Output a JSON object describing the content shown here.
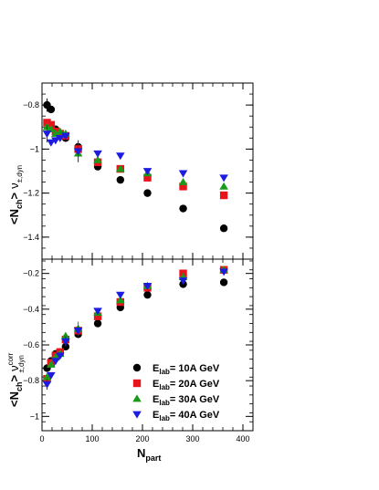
{
  "chart_data": [
    {
      "type": "scatter",
      "xlabel_main": "N",
      "xlabel_sub": "part",
      "ylabel_main": "<N",
      "ylabel_sub": "ch",
      "ylabel_close": ">",
      "ylabel_nu": "ν",
      "ylabel_nu_sub": "±,dyn",
      "xlim": [
        0,
        420
      ],
      "ylim": [
        -1.5,
        -0.7
      ],
      "yticks": [
        -0.8,
        -1.0,
        -1.2,
        -1.4
      ],
      "ytick_labels": [
        "−0.8",
        "−1",
        "−1.2",
        "−1.4"
      ],
      "series": [
        {
          "key": "10",
          "marker": "circle",
          "color": "#000000",
          "x": [
            10,
            18,
            27,
            36,
            47,
            72,
            111,
            156,
            210,
            281,
            362
          ],
          "y": [
            -0.8,
            -0.82,
            -0.91,
            -0.93,
            -0.95,
            -0.99,
            -1.08,
            -1.14,
            -1.2,
            -1.27,
            -1.36
          ],
          "err": [
            0.03,
            0,
            0,
            0,
            0,
            0,
            0,
            0,
            0,
            0,
            0
          ]
        },
        {
          "key": "20",
          "marker": "square",
          "color": "#e8141c",
          "x": [
            10,
            18,
            27,
            36,
            47,
            72,
            111,
            156,
            210,
            281,
            362
          ],
          "y": [
            -0.88,
            -0.89,
            -0.92,
            -0.93,
            -0.94,
            -1.0,
            -1.06,
            -1.09,
            -1.13,
            -1.17,
            -1.21
          ],
          "err": [
            0,
            0,
            0,
            0,
            0,
            0,
            0,
            0,
            0,
            0,
            0
          ]
        },
        {
          "key": "30",
          "marker": "triangle-up",
          "color": "#1a9a1a",
          "x": [
            10,
            18,
            27,
            36,
            47,
            72,
            111,
            156,
            210,
            281,
            362
          ],
          "y": [
            -0.9,
            -0.91,
            -0.93,
            -0.92,
            -0.93,
            -1.02,
            -1.05,
            -1.09,
            -1.11,
            -1.15,
            -1.17
          ],
          "err": [
            0,
            0,
            0,
            0,
            0,
            0,
            0,
            0,
            0,
            0,
            0
          ]
        },
        {
          "key": "40",
          "marker": "triangle-down",
          "color": "#1c1ce0",
          "x": [
            10,
            18,
            27,
            36,
            47,
            72,
            111,
            156,
            210,
            281,
            362
          ],
          "y": [
            -0.93,
            -0.97,
            -0.96,
            -0.95,
            -0.94,
            -1.01,
            -1.02,
            -1.03,
            -1.1,
            -1.11,
            -1.13
          ],
          "err": [
            0.04,
            0,
            0,
            0,
            0,
            0.05,
            0,
            0,
            0,
            0,
            0
          ]
        }
      ]
    },
    {
      "type": "scatter",
      "xlabel_main": "N",
      "xlabel_sub": "part",
      "ylabel_main": "<N",
      "ylabel_sub": "ch",
      "ylabel_close": ">",
      "ylabel_nu": "ν",
      "ylabel_nu_sup": "corr",
      "ylabel_nu_sub": "±,dyn",
      "xlim": [
        0,
        420
      ],
      "ylim": [
        -1.08,
        -0.12
      ],
      "xticks": [
        0,
        100,
        200,
        300,
        400
      ],
      "xtick_labels": [
        "0",
        "100",
        "200",
        "300",
        "400"
      ],
      "yticks": [
        -0.2,
        -0.4,
        -0.6,
        -0.8,
        -1.0
      ],
      "ytick_labels": [
        "−0.2",
        "−0.4",
        "−0.6",
        "−0.8",
        "−1"
      ],
      "legend_position": "bottom-right",
      "series": [
        {
          "key": "10",
          "marker": "circle",
          "color": "#000000",
          "legend_unit": "10A GeV",
          "x": [
            10,
            18,
            27,
            36,
            47,
            72,
            111,
            156,
            210,
            281,
            362
          ],
          "y": [
            -0.73,
            -0.69,
            -0.65,
            -0.64,
            -0.61,
            -0.54,
            -0.48,
            -0.39,
            -0.32,
            -0.26,
            -0.25
          ],
          "err": [
            0,
            0,
            0,
            0,
            0,
            0,
            0,
            0,
            0,
            0,
            0
          ]
        },
        {
          "key": "20",
          "marker": "square",
          "color": "#e8141c",
          "legend_unit": "20A GeV",
          "x": [
            10,
            18,
            27,
            36,
            47,
            72,
            111,
            156,
            210,
            281,
            362
          ],
          "y": [
            -0.79,
            -0.7,
            -0.66,
            -0.64,
            -0.57,
            -0.52,
            -0.44,
            -0.36,
            -0.28,
            -0.2,
            -0.18
          ],
          "err": [
            0,
            0,
            0,
            0,
            0,
            0,
            0,
            0,
            0,
            0,
            0
          ]
        },
        {
          "key": "30",
          "marker": "triangle-up",
          "color": "#1a9a1a",
          "legend_unit": "30A GeV",
          "x": [
            10,
            18,
            27,
            36,
            47,
            72,
            111,
            156,
            210,
            281,
            362
          ],
          "y": [
            -0.78,
            -0.71,
            -0.67,
            -0.65,
            -0.55,
            -0.51,
            -0.42,
            -0.35,
            -0.27,
            -0.22,
            -0.18
          ],
          "err": [
            0,
            0,
            0,
            0,
            0,
            0.04,
            0,
            0,
            0,
            0,
            0
          ]
        },
        {
          "key": "40",
          "marker": "triangle-down",
          "color": "#1c1ce0",
          "legend_unit": "40A GeV",
          "x": [
            10,
            18,
            27,
            36,
            47,
            72,
            111,
            156,
            210,
            281,
            362
          ],
          "y": [
            -0.82,
            -0.77,
            -0.69,
            -0.66,
            -0.58,
            -0.52,
            -0.41,
            -0.32,
            -0.27,
            -0.24,
            -0.19
          ],
          "err": [
            0.03,
            0,
            0,
            0,
            0.03,
            0.03,
            0,
            0,
            0,
            0,
            0
          ]
        }
      ],
      "legend": [
        {
          "key": "10",
          "prefix": "E",
          "sub": "lab",
          "text": "= 10A GeV"
        },
        {
          "key": "20",
          "prefix": "E",
          "sub": "lab",
          "text": "= 20A GeV"
        },
        {
          "key": "30",
          "prefix": "E",
          "sub": "lab",
          "text": "= 30A GeV"
        },
        {
          "key": "40",
          "prefix": "E",
          "sub": "lab",
          "text": "= 40A GeV"
        }
      ]
    }
  ]
}
